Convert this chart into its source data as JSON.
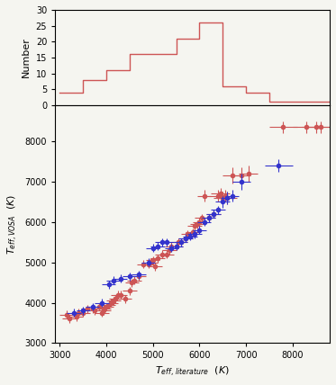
{
  "hist_bin_edges": [
    3000,
    3500,
    4000,
    4500,
    5000,
    5500,
    6000,
    6500,
    7000,
    7500,
    8000,
    8500,
    9000
  ],
  "hist_values": [
    4,
    8,
    11,
    16,
    16,
    21,
    26,
    6,
    4,
    1,
    1,
    1
  ],
  "hist_color": "#cd5555",
  "scatter_red": {
    "x": [
      3150,
      3200,
      3350,
      3400,
      3500,
      3600,
      3700,
      3750,
      3850,
      3900,
      3950,
      3950,
      4000,
      4050,
      4100,
      4150,
      4200,
      4250,
      4300,
      4400,
      4500,
      4550,
      4600,
      4700,
      4800,
      4900,
      4950,
      5000,
      5050,
      5100,
      5200,
      5300,
      5350,
      5400,
      5500,
      5550,
      5600,
      5700,
      5750,
      5850,
      5900,
      5950,
      6000,
      6050,
      6100,
      6200,
      6300,
      6400,
      6450,
      6500,
      6550,
      6600,
      6700,
      6900,
      7050,
      7800,
      8300,
      8500,
      8600
    ],
    "y": [
      3700,
      3600,
      3650,
      3750,
      3750,
      3850,
      3850,
      3800,
      3900,
      3750,
      3800,
      3850,
      3900,
      3950,
      4000,
      4050,
      4100,
      4200,
      4200,
      4100,
      4300,
      4500,
      4550,
      4650,
      4950,
      4950,
      5000,
      5050,
      4900,
      5100,
      5200,
      5200,
      5300,
      5400,
      5400,
      5500,
      5500,
      5600,
      5700,
      5750,
      5900,
      5950,
      6000,
      6100,
      6650,
      6100,
      6200,
      6650,
      6700,
      6600,
      6650,
      6600,
      7150,
      7150,
      7200,
      8350,
      8350,
      8350,
      8350
    ],
    "xerr": [
      150,
      150,
      150,
      150,
      150,
      150,
      150,
      150,
      150,
      150,
      150,
      150,
      150,
      150,
      150,
      150,
      150,
      150,
      150,
      150,
      150,
      150,
      150,
      150,
      150,
      150,
      150,
      150,
      150,
      150,
      150,
      150,
      150,
      150,
      150,
      150,
      150,
      150,
      150,
      150,
      150,
      150,
      150,
      150,
      150,
      150,
      150,
      200,
      200,
      200,
      200,
      200,
      200,
      200,
      200,
      300,
      300,
      300,
      300
    ],
    "yerr": [
      100,
      100,
      100,
      100,
      100,
      100,
      100,
      100,
      100,
      100,
      100,
      100,
      100,
      100,
      100,
      100,
      100,
      100,
      100,
      100,
      100,
      100,
      100,
      100,
      100,
      100,
      100,
      100,
      100,
      100,
      100,
      100,
      100,
      100,
      100,
      100,
      100,
      100,
      100,
      100,
      100,
      100,
      100,
      100,
      150,
      100,
      100,
      150,
      150,
      150,
      150,
      150,
      200,
      200,
      200,
      150,
      150,
      150,
      150
    ]
  },
  "scatter_blue": {
    "x": [
      3300,
      3500,
      3700,
      3900,
      4050,
      4150,
      4300,
      4500,
      4700,
      4900,
      5000,
      5100,
      5200,
      5300,
      5400,
      5500,
      5600,
      5700,
      5800,
      5900,
      6000,
      6100,
      6200,
      6300,
      6400,
      6500,
      6600,
      6700,
      6900,
      7700
    ],
    "y": [
      3750,
      3800,
      3900,
      4000,
      4450,
      4550,
      4600,
      4650,
      4700,
      5000,
      5350,
      5400,
      5500,
      5500,
      5350,
      5400,
      5500,
      5600,
      5650,
      5700,
      5800,
      6000,
      6100,
      6200,
      6300,
      6500,
      6600,
      6650,
      7000,
      7400
    ],
    "xerr": [
      150,
      150,
      150,
      150,
      150,
      150,
      150,
      150,
      150,
      150,
      150,
      150,
      150,
      150,
      150,
      150,
      150,
      150,
      150,
      150,
      150,
      150,
      150,
      150,
      150,
      150,
      150,
      150,
      200,
      300
    ],
    "yerr": [
      100,
      100,
      100,
      100,
      100,
      100,
      100,
      100,
      100,
      100,
      100,
      100,
      100,
      100,
      100,
      100,
      100,
      100,
      100,
      100,
      100,
      100,
      100,
      100,
      100,
      150,
      150,
      150,
      200,
      150
    ]
  },
  "red_color": "#cd5555",
  "blue_color": "#3333cc",
  "scatter_marker": "o",
  "scatter_ms": 3,
  "scatter_elinewidth": 0.8,
  "scatter_capsize": 0,
  "xlim": [
    2900,
    8800
  ],
  "ylim": [
    3000,
    8900
  ],
  "hist_ylim": [
    0,
    30
  ],
  "xlabel": "$T_{eff,\\,literature}$  $(K)$",
  "ylabel": "$T_{eff,VOSA}$  $(K)$",
  "hist_ylabel": "Number",
  "xticks": [
    3000,
    4000,
    5000,
    6000,
    7000,
    8000
  ],
  "yticks": [
    3000,
    4000,
    5000,
    6000,
    7000,
    8000
  ],
  "hist_yticks": [
    0,
    5,
    10,
    15,
    20,
    25,
    30
  ],
  "background": "#f5f5f0"
}
